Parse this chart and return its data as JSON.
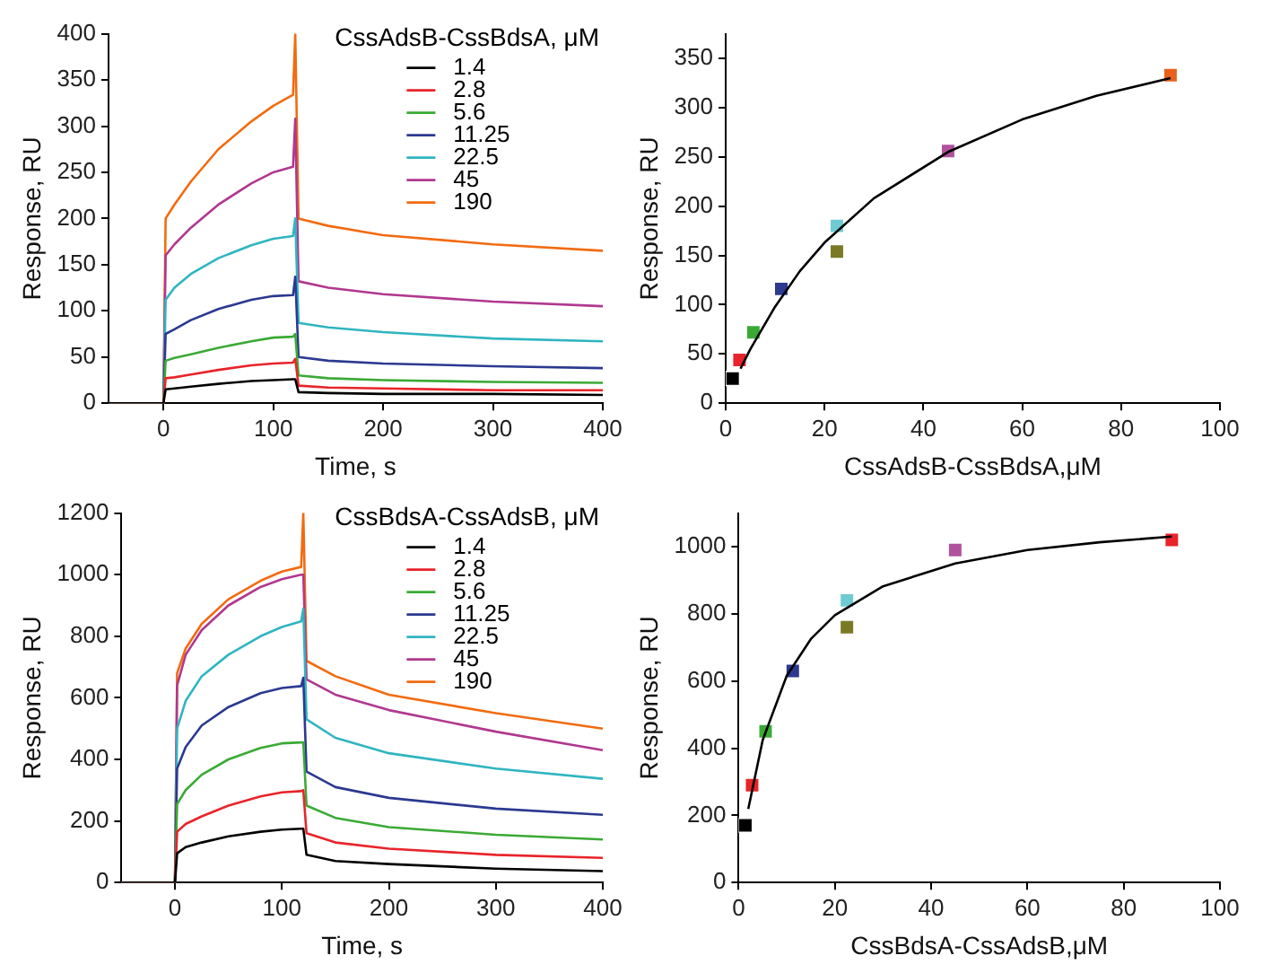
{
  "chart_data": [
    {
      "type": "line",
      "xlabel": "Time, s",
      "ylabel": "Response, RU",
      "legend_title": "CssAdsB-CssBdsA, μM",
      "legend": "top right",
      "grid": false,
      "marker": "none",
      "xlim": [
        -50,
        400
      ],
      "xticks": [
        0,
        100,
        200,
        300,
        400
      ],
      "ylim": [
        0,
        400
      ],
      "yticks": [
        0,
        50,
        100,
        150,
        200,
        250,
        300,
        350,
        400
      ],
      "x": [
        -50,
        0,
        2,
        10,
        25,
        50,
        80,
        100,
        118,
        120,
        123,
        150,
        200,
        300,
        400
      ],
      "series": [
        {
          "name": "1.4",
          "color": "#000000",
          "values": [
            0,
            0,
            15,
            16,
            18,
            21,
            24,
            25,
            26,
            26,
            12,
            11,
            10,
            10,
            9
          ]
        },
        {
          "name": "2.8",
          "color": "#e8242a",
          "values": [
            0,
            0,
            27,
            28,
            31,
            36,
            41,
            43,
            44,
            48,
            19,
            17,
            16,
            14,
            14
          ]
        },
        {
          "name": "5.6",
          "color": "#3aaa35",
          "values": [
            0,
            0,
            46,
            49,
            53,
            60,
            67,
            71,
            72,
            75,
            30,
            27,
            25,
            23,
            22
          ]
        },
        {
          "name": "11.25",
          "color": "#2b3990",
          "values": [
            0,
            0,
            75,
            80,
            90,
            102,
            112,
            116,
            117,
            137,
            50,
            46,
            43,
            40,
            38
          ]
        },
        {
          "name": "22.5",
          "color": "#2fb5c0",
          "values": [
            0,
            0,
            112,
            125,
            140,
            157,
            171,
            178,
            181,
            200,
            87,
            82,
            77,
            70,
            67
          ]
        },
        {
          "name": "45",
          "color": "#b0388f",
          "values": [
            0,
            0,
            160,
            172,
            190,
            215,
            238,
            250,
            256,
            308,
            132,
            125,
            118,
            110,
            105
          ]
        },
        {
          "name": "190",
          "color": "#f26b0f",
          "values": [
            0,
            0,
            200,
            215,
            240,
            275,
            305,
            322,
            334,
            400,
            200,
            192,
            182,
            172,
            165
          ]
        }
      ]
    },
    {
      "type": "scatter",
      "xlabel": "CssAdsB-CssBdsA,μM",
      "ylabel": "Response, RU",
      "grid": false,
      "xlim": [
        0,
        100
      ],
      "xticks": [
        0,
        20,
        40,
        60,
        80,
        100
      ],
      "ylim": [
        0,
        375
      ],
      "yticks": [
        0,
        50,
        100,
        150,
        200,
        250,
        300,
        350
      ],
      "series": [
        {
          "marker": "square",
          "x": [
            1.4,
            2.8,
            5.6,
            11.25,
            22.5,
            22.5,
            45,
            90
          ],
          "values": [
            25,
            44,
            72,
            116,
            180,
            154,
            256,
            333
          ],
          "colors": [
            "#000000",
            "#e8242a",
            "#3aaa35",
            "#2b3990",
            "#6fcad1",
            "#7a7a25",
            "#b0529d",
            "#e8601c"
          ]
        },
        {
          "type": "line",
          "marker": "none",
          "color": "#000000",
          "x": [
            3,
            5,
            10,
            15,
            20,
            30,
            45,
            60,
            75,
            90
          ],
          "values": [
            35,
            55,
            98,
            134,
            163,
            208,
            255,
            288,
            312,
            330
          ]
        }
      ]
    },
    {
      "type": "line",
      "xlabel": "Time, s",
      "ylabel": "Response, RU",
      "legend_title": "CssBdsA-CssAdsB, μM",
      "legend": "top right",
      "grid": false,
      "marker": "none",
      "xlim": [
        -50,
        400
      ],
      "xticks": [
        0,
        100,
        200,
        300,
        400
      ],
      "ylim": [
        0,
        1200
      ],
      "yticks": [
        0,
        200,
        400,
        600,
        800,
        1000,
        1200
      ],
      "x": [
        -50,
        0,
        2,
        10,
        25,
        50,
        80,
        100,
        118,
        120,
        123,
        150,
        200,
        300,
        400
      ],
      "series": [
        {
          "name": "1.4",
          "color": "#000000",
          "values": [
            0,
            0,
            95,
            115,
            130,
            150,
            165,
            172,
            175,
            175,
            90,
            70,
            60,
            45,
            37
          ]
        },
        {
          "name": "2.8",
          "color": "#e8242a",
          "values": [
            0,
            0,
            165,
            190,
            215,
            250,
            280,
            293,
            297,
            300,
            160,
            130,
            110,
            90,
            80
          ]
        },
        {
          "name": "5.6",
          "color": "#3aaa35",
          "values": [
            0,
            0,
            255,
            300,
            350,
            400,
            437,
            452,
            455,
            455,
            250,
            210,
            180,
            155,
            140
          ]
        },
        {
          "name": "11.25",
          "color": "#2b3990",
          "values": [
            0,
            0,
            370,
            440,
            510,
            570,
            615,
            632,
            638,
            665,
            360,
            310,
            275,
            240,
            220
          ]
        },
        {
          "name": "22.5",
          "color": "#2fb5c0",
          "values": [
            0,
            0,
            500,
            590,
            670,
            740,
            800,
            830,
            848,
            890,
            530,
            470,
            420,
            370,
            337
          ]
        },
        {
          "name": "45",
          "color": "#b0388f",
          "values": [
            0,
            0,
            640,
            740,
            820,
            900,
            960,
            985,
            1000,
            1000,
            660,
            610,
            560,
            490,
            430
          ]
        },
        {
          "name": "190",
          "color": "#f26b0f",
          "values": [
            0,
            0,
            680,
            760,
            840,
            920,
            980,
            1010,
            1025,
            1200,
            720,
            670,
            610,
            550,
            500
          ]
        }
      ]
    },
    {
      "type": "scatter",
      "xlabel": "CssBdsA-CssAdsB,μM",
      "ylabel": "Response, RU",
      "grid": false,
      "xlim": [
        0,
        100
      ],
      "xticks": [
        0,
        20,
        40,
        60,
        80,
        100
      ],
      "ylim": [
        0,
        1100
      ],
      "yticks": [
        0,
        200,
        400,
        600,
        800,
        1000
      ],
      "series": [
        {
          "marker": "square",
          "x": [
            1.4,
            2.8,
            5.6,
            11.25,
            22.5,
            22.5,
            45,
            90
          ],
          "values": [
            170,
            290,
            450,
            630,
            840,
            760,
            990,
            1020
          ],
          "colors": [
            "#000000",
            "#e8242a",
            "#3aaa35",
            "#2b3990",
            "#6fcad1",
            "#7a7a25",
            "#b0529d",
            "#e8242a"
          ]
        },
        {
          "type": "line",
          "marker": "none",
          "color": "#000000",
          "x": [
            2,
            5,
            10,
            15,
            20,
            30,
            45,
            60,
            75,
            90
          ],
          "values": [
            219,
            424,
            616,
            725,
            796,
            882,
            950,
            990,
            1013,
            1030
          ]
        }
      ]
    }
  ]
}
